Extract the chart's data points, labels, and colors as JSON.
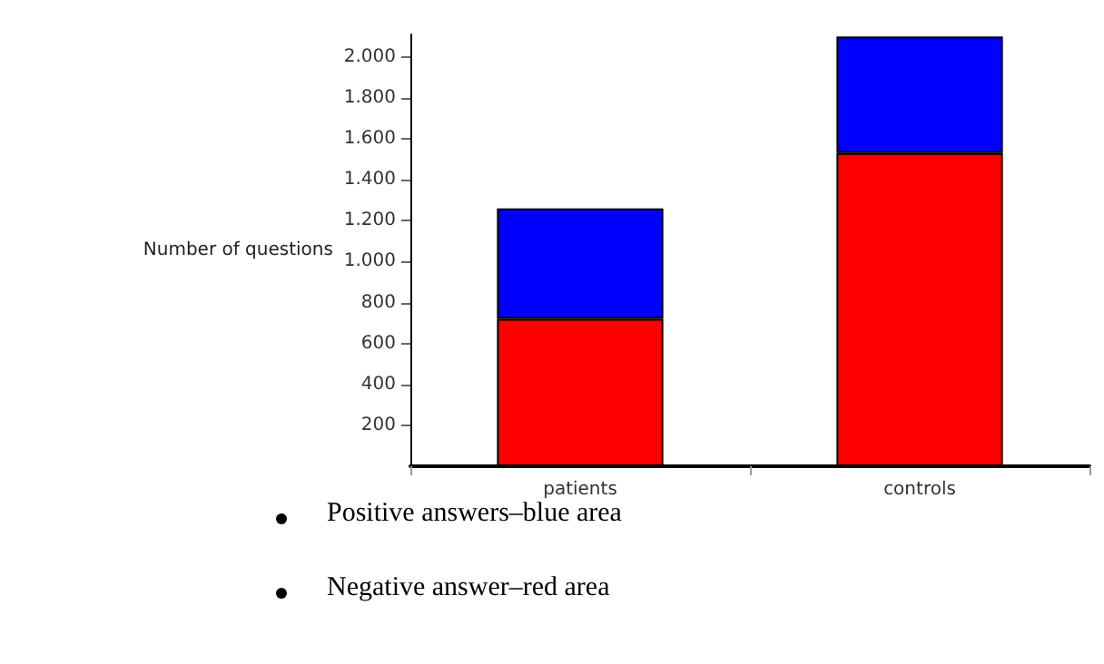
{
  "chart_data": {
    "type": "bar",
    "ylabel": "Number of questions",
    "categories": [
      "patients",
      "controls"
    ],
    "stacked": true,
    "series": [
      {
        "color": "#ff0000",
        "values": [
          720,
          1530
        ]
      },
      {
        "color": "#0000ff",
        "values": [
          540,
          570
        ]
      }
    ],
    "ylim": [
      0,
      2110
    ],
    "yticks": [
      {
        "value": 200,
        "label": "200"
      },
      {
        "value": 400,
        "label": "400"
      },
      {
        "value": 600,
        "label": "600"
      },
      {
        "value": 800,
        "label": "800"
      },
      {
        "value": 1000,
        "label": "1.000"
      },
      {
        "value": 1200,
        "label": "1.200"
      },
      {
        "value": 1400,
        "label": "1.400"
      },
      {
        "value": 1600,
        "label": "1.600"
      },
      {
        "value": 1800,
        "label": "1.800"
      },
      {
        "value": 2000,
        "label": "2.000"
      }
    ],
    "grid": false,
    "annotations": [
      "Positive answers–blue area",
      "Negative answer–red area"
    ]
  }
}
